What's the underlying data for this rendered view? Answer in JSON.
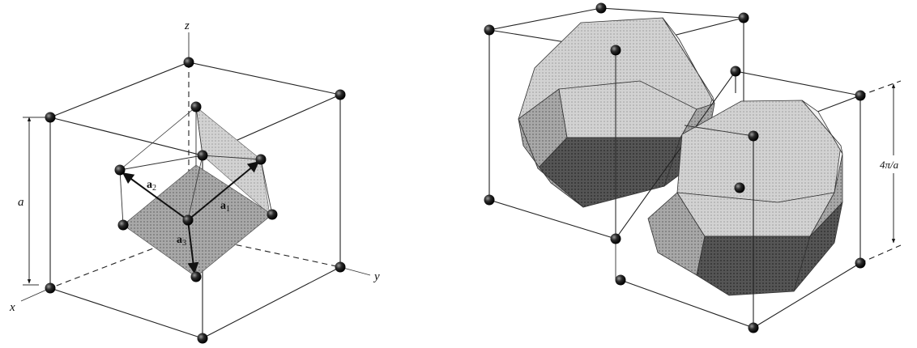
{
  "left_figure": {
    "axis_x": "x",
    "axis_y": "y",
    "axis_z": "z",
    "edge_label": "a",
    "vectors": [
      {
        "name": "a",
        "sub": "1"
      },
      {
        "name": "a",
        "sub": "2"
      },
      {
        "name": "a",
        "sub": "3"
      }
    ]
  },
  "right_figure": {
    "edge_label": "4π/a"
  },
  "colors": {
    "face_light": "#cfcfcf",
    "face_mid": "#9a9a9a",
    "face_dark": "#4a4a4a",
    "atom": "#1a1a1a"
  }
}
